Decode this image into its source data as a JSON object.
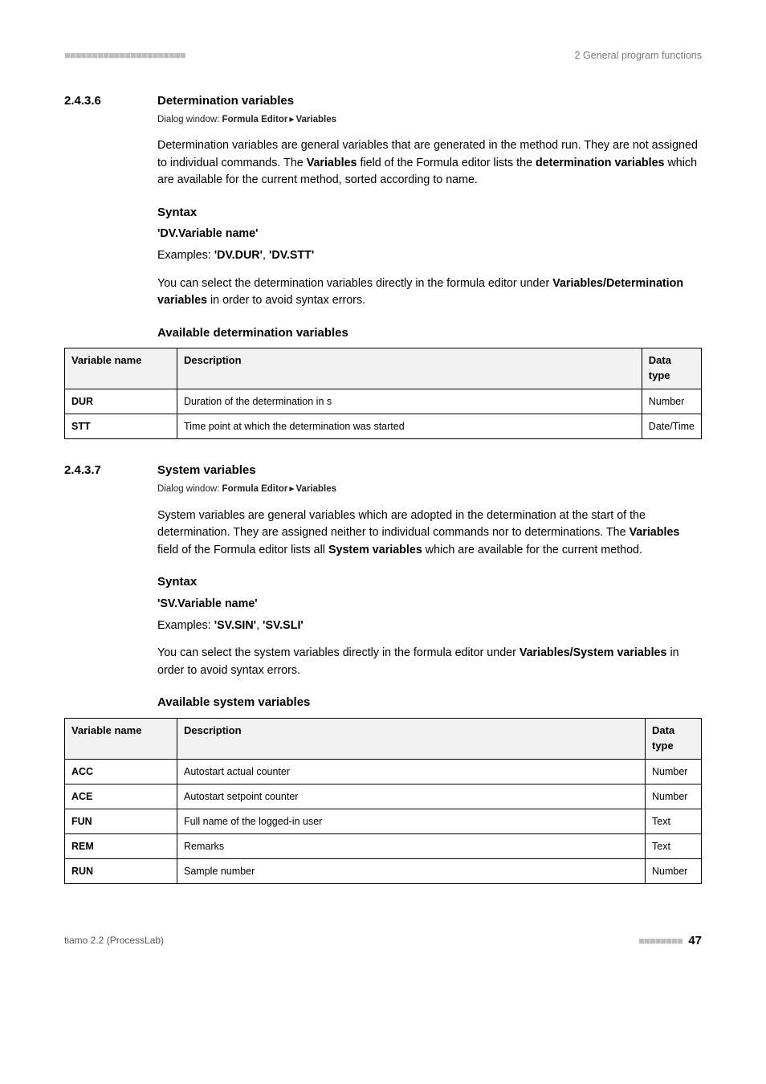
{
  "header": {
    "dashes": "■■■■■■■■■■■■■■■■■■■■■■",
    "right": "2 General program functions"
  },
  "sections": [
    {
      "number": "2.4.3.6",
      "title": "Determination variables",
      "dialog_prefix": "Dialog window: ",
      "dialog_bold1": "Formula Editor",
      "dialog_bold2": "Variables",
      "intro_parts": [
        "Determination variables are general variables that are generated in the method run. They are not assigned to individual commands. The ",
        "Variables",
        " field of the Formula editor lists the ",
        "determination variables",
        " which are available for the current method, sorted according to name."
      ],
      "syntax_heading": "Syntax",
      "syntax_text": "'DV.Variable name'",
      "examples_label": "Examples: ",
      "examples": [
        "'DV.DUR'",
        "'DV.STT'"
      ],
      "hint_parts": [
        "You can select the determination variables directly in the formula editor under ",
        "Variables/Determination variables",
        " in order to avoid syntax errors."
      ],
      "table_title": "Available determination variables",
      "columns": [
        "Variable name",
        "Description",
        "Data type"
      ],
      "rows": [
        {
          "name": "DUR",
          "desc": "Duration of the determination in s",
          "type": "Number"
        },
        {
          "name": "STT",
          "desc": "Time point at which the determination was started",
          "type": "Date/Time"
        }
      ]
    },
    {
      "number": "2.4.3.7",
      "title": "System variables",
      "dialog_prefix": "Dialog window: ",
      "dialog_bold1": "Formula Editor",
      "dialog_bold2": "Variables",
      "intro_parts": [
        "System variables are general variables which are adopted in the determination at the start of the determination. They are assigned neither to individual commands nor to determinations. The ",
        "Variables",
        " field of the Formula editor lists all ",
        "System variables",
        " which are available for the current method."
      ],
      "syntax_heading": "Syntax",
      "syntax_text": "'SV.Variable name'",
      "examples_label": "Examples: ",
      "examples": [
        "'SV.SIN'",
        "'SV.SLI'"
      ],
      "hint_parts": [
        "You can select the system variables directly in the formula editor under ",
        "Variables/System variables",
        " in order to avoid syntax errors."
      ],
      "table_title": "Available system variables",
      "columns": [
        "Variable name",
        "Description",
        "Data type"
      ],
      "rows": [
        {
          "name": "ACC",
          "desc": "Autostart actual counter",
          "type": "Number"
        },
        {
          "name": "ACE",
          "desc": "Autostart setpoint counter",
          "type": "Number"
        },
        {
          "name": "FUN",
          "desc": "Full name of the logged-in user",
          "type": "Text"
        },
        {
          "name": "REM",
          "desc": "Remarks",
          "type": "Text"
        },
        {
          "name": "RUN",
          "desc": "Sample number",
          "type": "Number"
        }
      ]
    }
  ],
  "footer": {
    "left": "tiamo 2.2 (ProcessLab)",
    "dashes": "■■■■■■■■",
    "page": "47"
  }
}
